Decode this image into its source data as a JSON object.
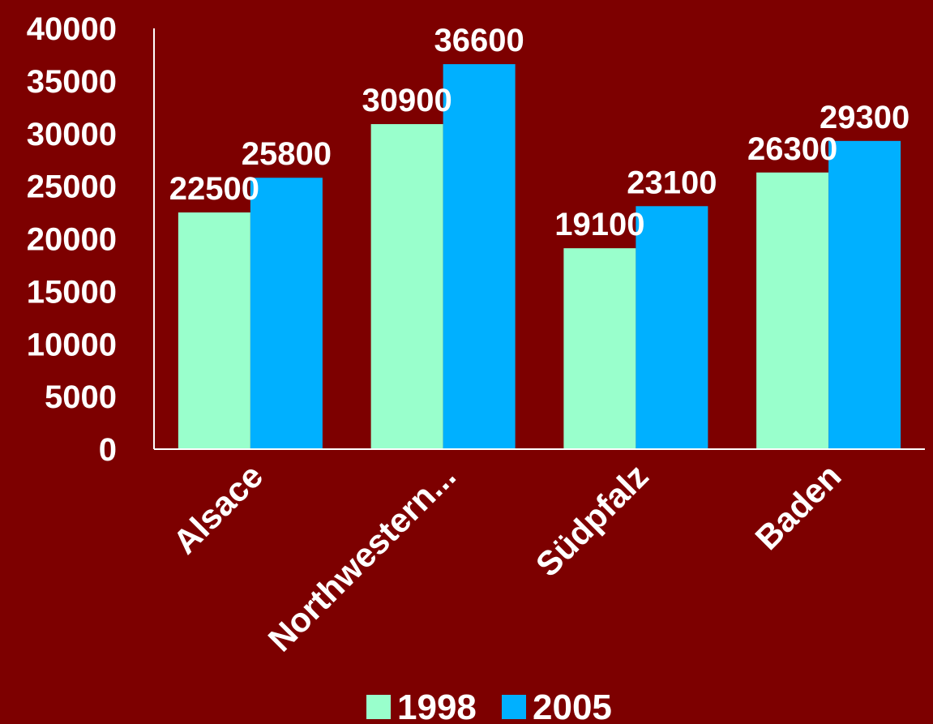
{
  "chart_data": {
    "type": "bar",
    "title": "",
    "xlabel": "",
    "ylabel": "",
    "categories": [
      "Alsace",
      "Northwestern...",
      "Südpfalz",
      "Baden"
    ],
    "series": [
      {
        "name": "1998",
        "values": [
          22500,
          30900,
          19100,
          26300
        ],
        "color": "#99ffcc"
      },
      {
        "name": "2005",
        "values": [
          25800,
          36600,
          23100,
          29300
        ],
        "color": "#00b0ff"
      }
    ],
    "ylim": [
      0,
      40000
    ],
    "yticks": [
      "0",
      "5000",
      "10000",
      "15000",
      "20000",
      "25000",
      "30000",
      "35000",
      "40000"
    ],
    "data_labels": [
      [
        "22500",
        "30900",
        "19100",
        "26300"
      ],
      [
        "25800",
        "36600",
        "23100",
        "29300"
      ]
    ],
    "grid": false,
    "legend": "bottom",
    "colors": {
      "background": "#7d0000",
      "axis": "#ffffff",
      "text": "#ffffff"
    }
  }
}
